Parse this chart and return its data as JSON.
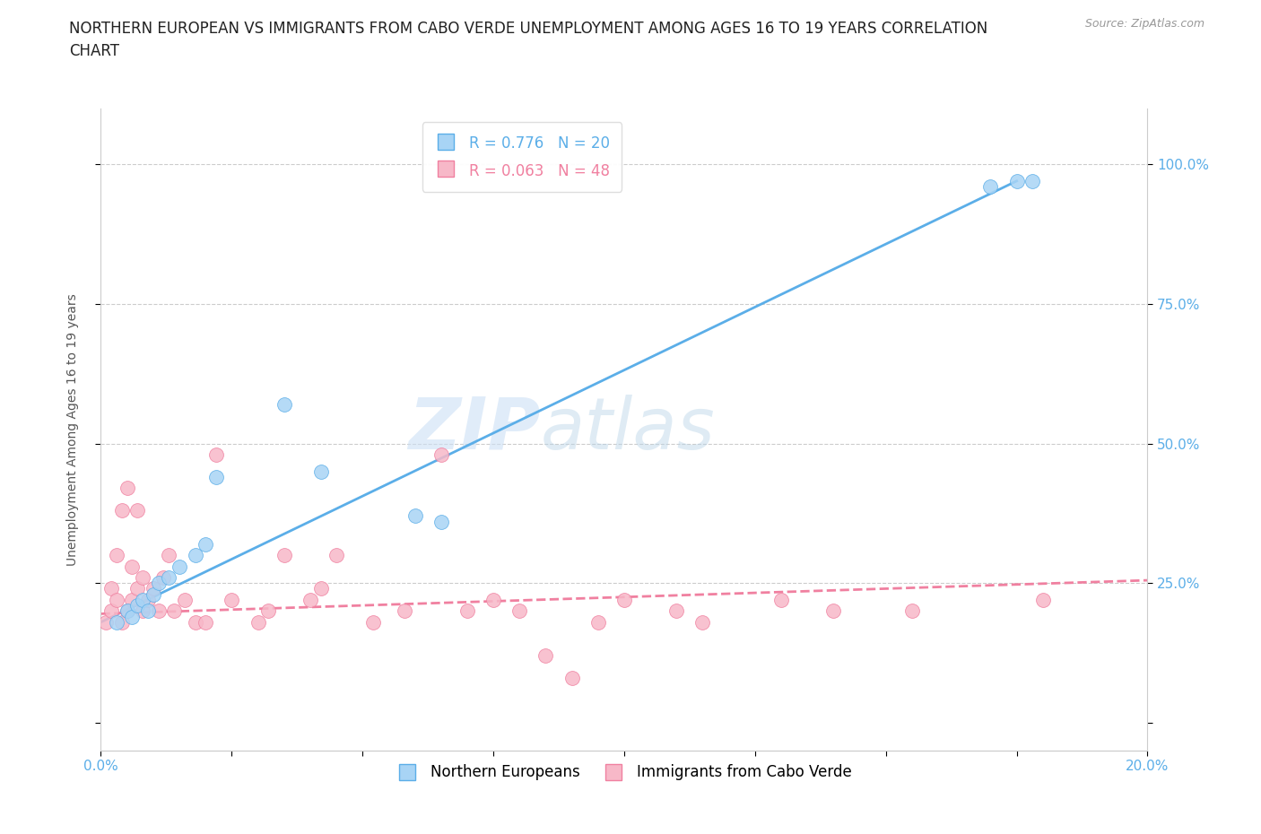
{
  "title": "NORTHERN EUROPEAN VS IMMIGRANTS FROM CABO VERDE UNEMPLOYMENT AMONG AGES 16 TO 19 YEARS CORRELATION\nCHART",
  "source": "Source: ZipAtlas.com",
  "ylabel_left": "Unemployment Among Ages 16 to 19 years",
  "xlim": [
    0.0,
    0.2
  ],
  "ylim": [
    -0.05,
    1.1
  ],
  "watermark_zip": "ZIP",
  "watermark_atlas": "atlas",
  "legend_entry1": "R = 0.776   N = 20",
  "legend_entry2": "R = 0.063   N = 48",
  "blue_scatter_color": "#a8d4f5",
  "blue_line_color": "#5baee8",
  "pink_scatter_color": "#f7b8c8",
  "pink_line_color": "#f080a0",
  "blue_scatter_x": [
    0.003,
    0.005,
    0.006,
    0.007,
    0.008,
    0.009,
    0.01,
    0.011,
    0.013,
    0.015,
    0.018,
    0.02,
    0.022,
    0.035,
    0.042,
    0.06,
    0.065,
    0.17,
    0.175,
    0.178
  ],
  "blue_scatter_y": [
    0.18,
    0.2,
    0.19,
    0.21,
    0.22,
    0.2,
    0.23,
    0.25,
    0.26,
    0.28,
    0.3,
    0.32,
    0.44,
    0.57,
    0.45,
    0.37,
    0.36,
    0.96,
    0.97,
    0.97
  ],
  "pink_scatter_x": [
    0.001,
    0.002,
    0.002,
    0.003,
    0.003,
    0.004,
    0.004,
    0.005,
    0.005,
    0.006,
    0.006,
    0.007,
    0.007,
    0.008,
    0.008,
    0.009,
    0.01,
    0.011,
    0.012,
    0.013,
    0.014,
    0.016,
    0.018,
    0.02,
    0.022,
    0.025,
    0.03,
    0.032,
    0.035,
    0.04,
    0.042,
    0.045,
    0.052,
    0.058,
    0.065,
    0.07,
    0.075,
    0.08,
    0.085,
    0.09,
    0.095,
    0.1,
    0.11,
    0.115,
    0.13,
    0.14,
    0.155,
    0.18
  ],
  "pink_scatter_y": [
    0.18,
    0.2,
    0.24,
    0.22,
    0.3,
    0.18,
    0.38,
    0.2,
    0.42,
    0.22,
    0.28,
    0.24,
    0.38,
    0.2,
    0.26,
    0.22,
    0.24,
    0.2,
    0.26,
    0.3,
    0.2,
    0.22,
    0.18,
    0.18,
    0.48,
    0.22,
    0.18,
    0.2,
    0.3,
    0.22,
    0.24,
    0.3,
    0.18,
    0.2,
    0.48,
    0.2,
    0.22,
    0.2,
    0.12,
    0.08,
    0.18,
    0.22,
    0.2,
    0.18,
    0.22,
    0.2,
    0.2,
    0.22
  ],
  "blue_trend_x": [
    0.0,
    0.175
  ],
  "blue_trend_y": [
    0.18,
    0.97
  ],
  "pink_trend_x": [
    0.0,
    0.2
  ],
  "pink_trend_y": [
    0.195,
    0.255
  ],
  "grid_color": "#cccccc",
  "background_color": "#ffffff",
  "title_fontsize": 12,
  "axis_label_fontsize": 10,
  "tick_fontsize": 11,
  "legend_fontsize": 12,
  "right_tick_color": "#5baee8"
}
